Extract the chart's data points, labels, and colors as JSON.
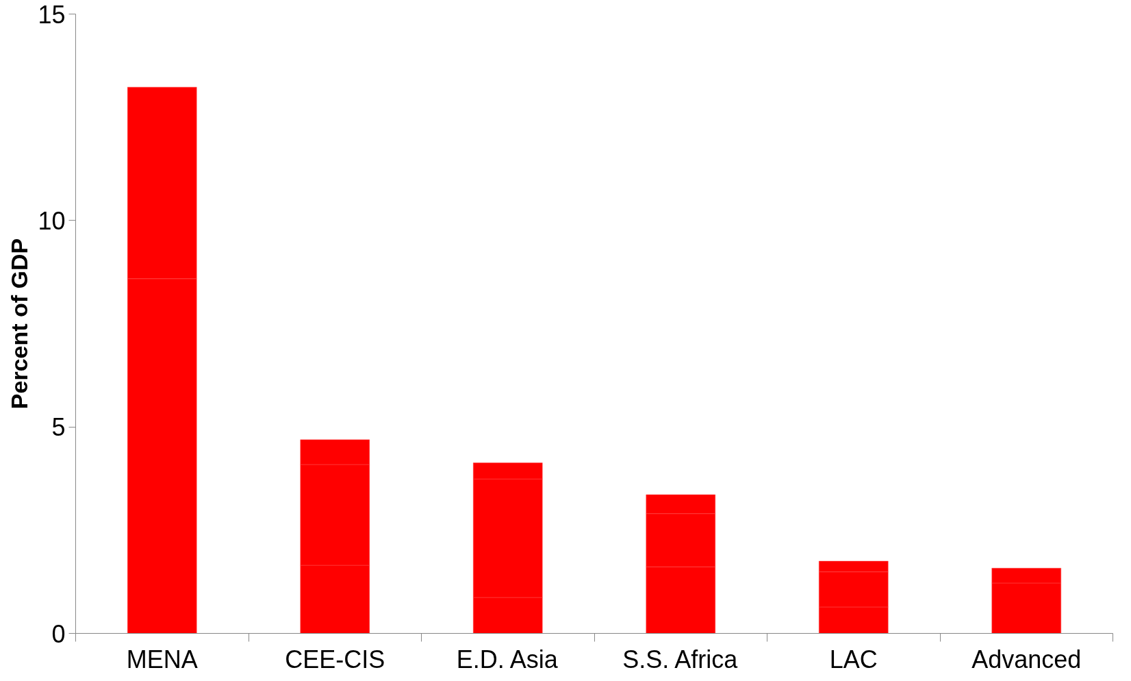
{
  "chart_data": {
    "type": "bar",
    "stacked": true,
    "ylabel": "Percent of GDP",
    "categories": [
      "MENA",
      "CEE-CIS",
      "E.D. Asia",
      "S.S. Africa",
      "LAC",
      "Advanced"
    ],
    "series": [
      {
        "color": "#ff0000",
        "values": [
          8.59,
          1.65,
          0.87,
          1.61,
          0.64,
          1.22
        ]
      },
      {
        "color": "#ff0000",
        "values": [
          4.64,
          2.44,
          2.87,
          1.29,
          0.85,
          0.36
        ]
      },
      {
        "color": "#ff0000",
        "values": [
          null,
          0.6,
          0.39,
          0.46,
          0.26,
          null
        ]
      }
    ],
    "ylim": [
      0,
      15
    ],
    "yticks": [
      0,
      5,
      10,
      15
    ],
    "grid": false
  }
}
